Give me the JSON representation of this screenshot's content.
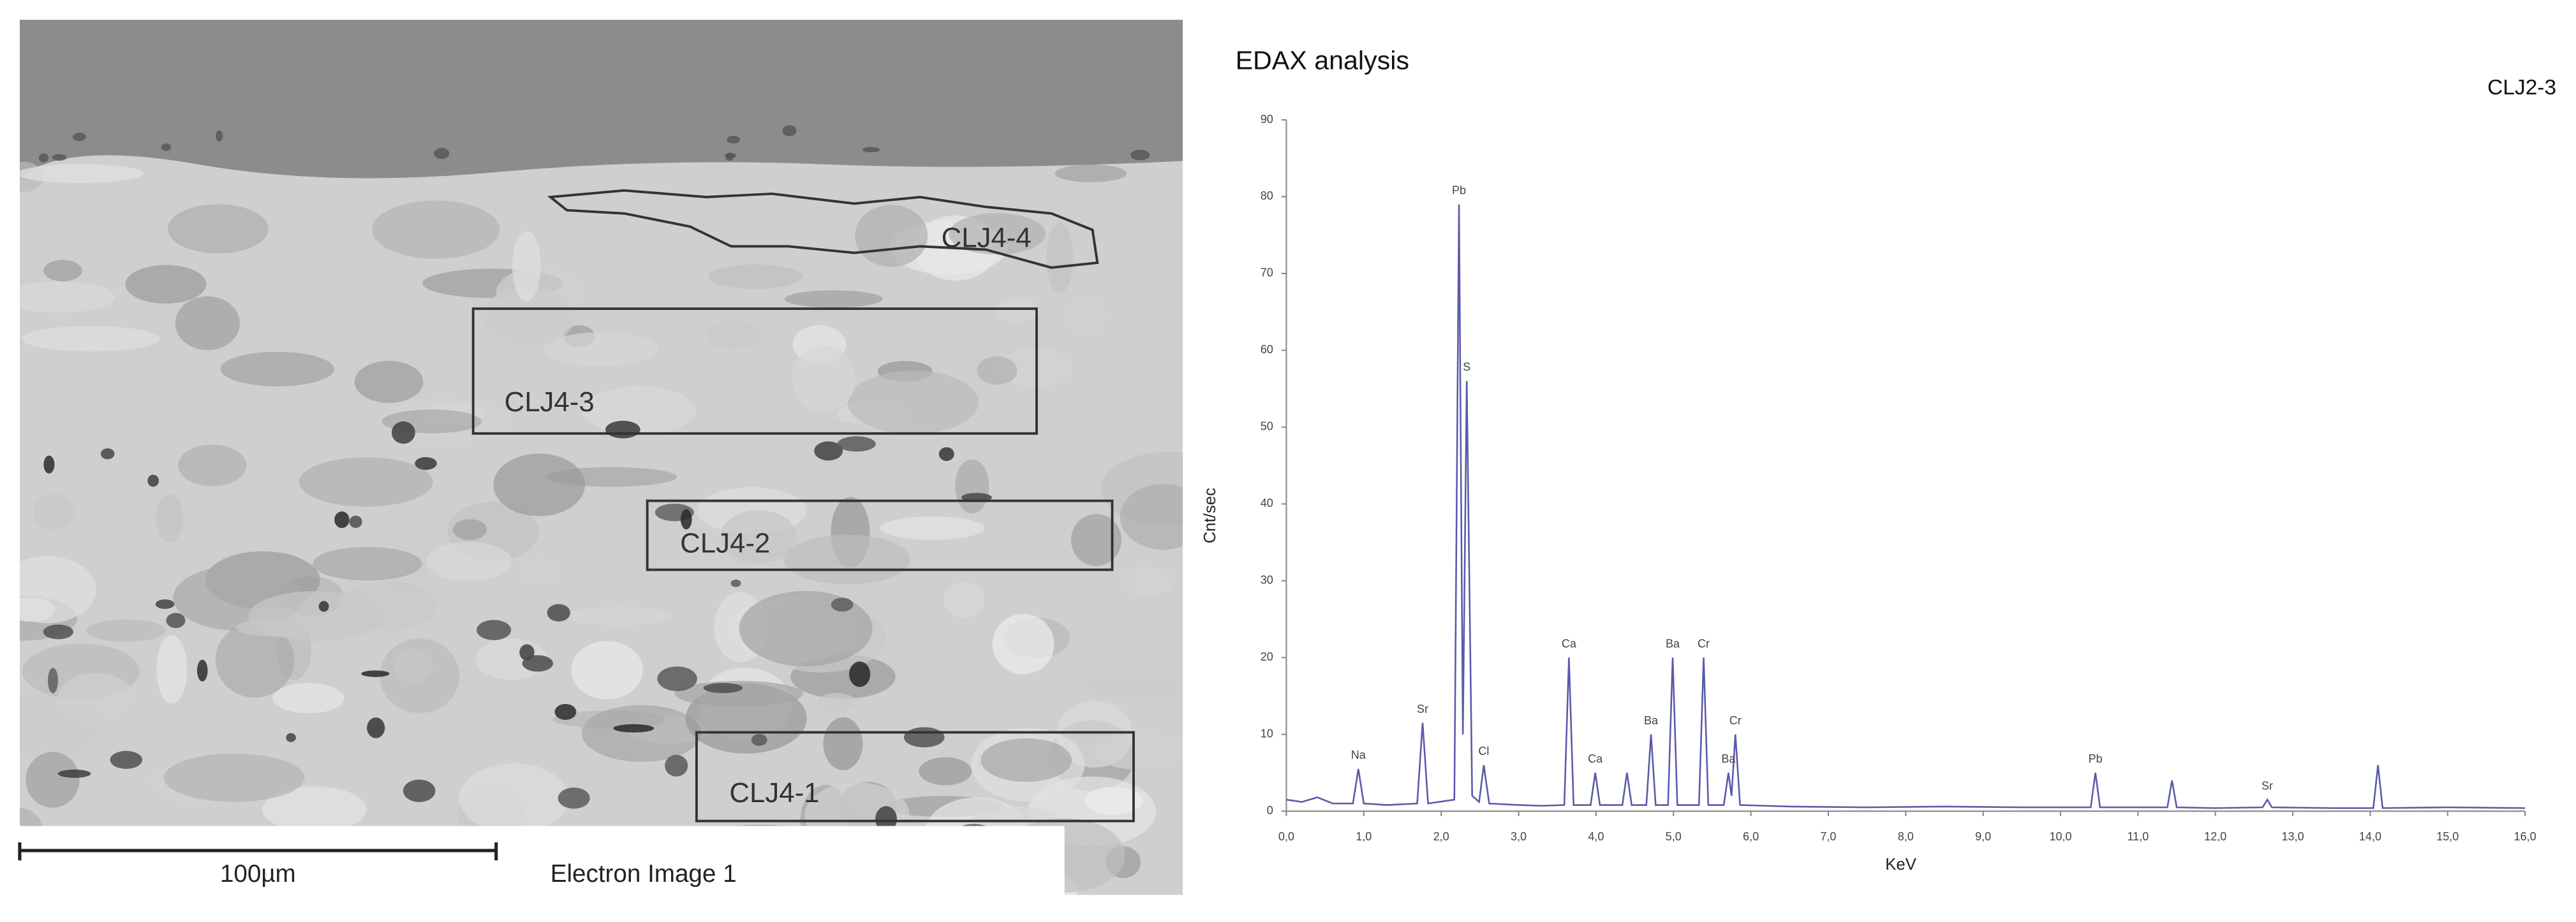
{
  "image": {
    "regions": [
      "CLJ4-4",
      "CLJ4-3",
      "CLJ4-2",
      "CLJ4-1"
    ],
    "scale_bar": "100µm",
    "caption": "Electron Image 1"
  },
  "chart_data": {
    "type": "line",
    "title": "EDAX analysis",
    "subtitle": "CLJ2-3",
    "x_label": "KeV",
    "y_label": "Cnt/sec",
    "xlim": [
      0,
      16
    ],
    "ylim": [
      0,
      90
    ],
    "xticks": [
      {
        "value": 0,
        "label": "0,0"
      },
      {
        "value": 1,
        "label": "1,0"
      },
      {
        "value": 2,
        "label": "2,0"
      },
      {
        "value": 3,
        "label": "3,0"
      },
      {
        "value": 4,
        "label": "4,0"
      },
      {
        "value": 5,
        "label": "5,0"
      },
      {
        "value": 6,
        "label": "6,0"
      },
      {
        "value": 7,
        "label": "7,0"
      },
      {
        "value": 8,
        "label": "8,0"
      },
      {
        "value": 9,
        "label": "9,0"
      },
      {
        "value": 10,
        "label": "10,0"
      },
      {
        "value": 11,
        "label": "11,0"
      },
      {
        "value": 12,
        "label": "12,0"
      },
      {
        "value": 13,
        "label": "13,0"
      },
      {
        "value": 14,
        "label": "14,0"
      },
      {
        "value": 15,
        "label": "15,0"
      },
      {
        "value": 16,
        "label": "16,0"
      }
    ],
    "yticks": [
      0,
      10,
      20,
      30,
      40,
      50,
      60,
      70,
      80,
      90
    ],
    "x": [
      0,
      0.2,
      0.4,
      0.6,
      0.86,
      0.93,
      1,
      1.3,
      1.69,
      1.76,
      1.83,
      2.17,
      2.23,
      2.28,
      2.33,
      2.4,
      2.49,
      2.55,
      2.62,
      3,
      3.3,
      3.59,
      3.65,
      3.71,
      3.93,
      3.99,
      4.05,
      4.34,
      4.4,
      4.46,
      4.65,
      4.71,
      4.77,
      4.93,
      4.99,
      5.05,
      5.33,
      5.39,
      5.45,
      5.65,
      5.71,
      5.75,
      5.8,
      5.86,
      6.5,
      7.5,
      8.5,
      9.5,
      10.39,
      10.45,
      10.51,
      11.38,
      11.44,
      11.5,
      12,
      12.61,
      12.67,
      12.73,
      13.5,
      14.04,
      14.1,
      14.16,
      15,
      16
    ],
    "series": [
      {
        "color": "#5a5aaa",
        "values": [
          1.5,
          1.2,
          1.8,
          1,
          1,
          5.5,
          1,
          0.8,
          1,
          11.5,
          1,
          1.5,
          79,
          10,
          56,
          2,
          1.2,
          6,
          1,
          0.8,
          0.7,
          0.8,
          20,
          0.8,
          0.8,
          5,
          0.8,
          0.8,
          5,
          0.8,
          0.8,
          10,
          0.8,
          0.8,
          20,
          0.8,
          0.8,
          20,
          0.8,
          0.8,
          5,
          2,
          10,
          0.8,
          0.6,
          0.5,
          0.6,
          0.5,
          0.5,
          5,
          0.5,
          0.5,
          4,
          0.5,
          0.4,
          0.5,
          1.5,
          0.5,
          0.4,
          0.4,
          6,
          0.4,
          0.5,
          0.4
        ]
      }
    ],
    "annotations": [
      {
        "text": "Na",
        "x": 0.93,
        "y": 5.5
      },
      {
        "text": "Sr",
        "x": 1.76,
        "y": 11.5
      },
      {
        "text": "Pb",
        "x": 2.23,
        "y": 79
      },
      {
        "text": "S",
        "x": 2.33,
        "y": 56
      },
      {
        "text": "Cl",
        "x": 2.55,
        "y": 6
      },
      {
        "text": "Ca",
        "x": 3.65,
        "y": 20
      },
      {
        "text": "Ca",
        "x": 3.99,
        "y": 5
      },
      {
        "text": "Ba",
        "x": 4.71,
        "y": 10
      },
      {
        "text": "Ba",
        "x": 4.99,
        "y": 20
      },
      {
        "text": "Cr",
        "x": 5.39,
        "y": 20
      },
      {
        "text": "Ba",
        "x": 5.71,
        "y": 5
      },
      {
        "text": "Cr",
        "x": 5.8,
        "y": 10
      },
      {
        "text": "Pb",
        "x": 10.45,
        "y": 5
      },
      {
        "text": "Sr",
        "x": 12.67,
        "y": 1.5
      }
    ]
  }
}
